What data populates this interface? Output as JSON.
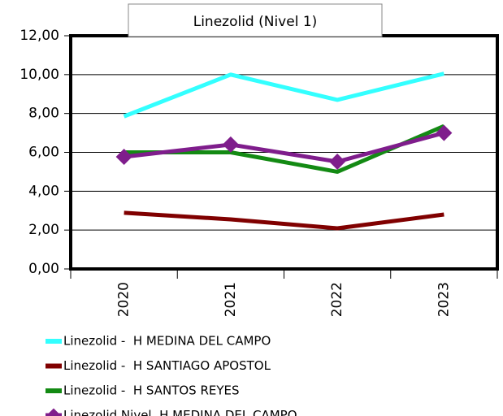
{
  "chart_data": {
    "type": "line",
    "title": "Linezolid (Nivel 1)",
    "categories": [
      "2020",
      "2021",
      "2022",
      "2023"
    ],
    "series": [
      {
        "name": "Linezolid -  H MEDINA DEL CAMPO",
        "color": "#33ffff",
        "values": [
          7.85,
          10.0,
          8.7,
          10.05
        ]
      },
      {
        "name": "Linezolid -  H SANTIAGO APOSTOL",
        "color": "#800000",
        "values": [
          2.89,
          2.55,
          2.09,
          2.8
        ]
      },
      {
        "name": "Linezolid -  H SANTOS REYES",
        "color": "#138a13",
        "values": [
          6.0,
          6.0,
          5.0,
          7.35
        ]
      },
      {
        "name": "Linezolid Nivel  H MEDINA DEL CAMPO",
        "color": "#7f1d8c",
        "marker": "diamond",
        "values": [
          5.77,
          6.4,
          5.52,
          7.0
        ]
      }
    ],
    "ylim": [
      0,
      12
    ],
    "yticks": [
      {
        "value": 0,
        "label": "0,00"
      },
      {
        "value": 2,
        "label": "2,00"
      },
      {
        "value": 4,
        "label": "4,00"
      },
      {
        "value": 6,
        "label": "6,00"
      },
      {
        "value": 8,
        "label": "8,00"
      },
      {
        "value": 10,
        "label": "10,00"
      },
      {
        "value": 12,
        "label": "12,00"
      }
    ],
    "grid": true
  }
}
